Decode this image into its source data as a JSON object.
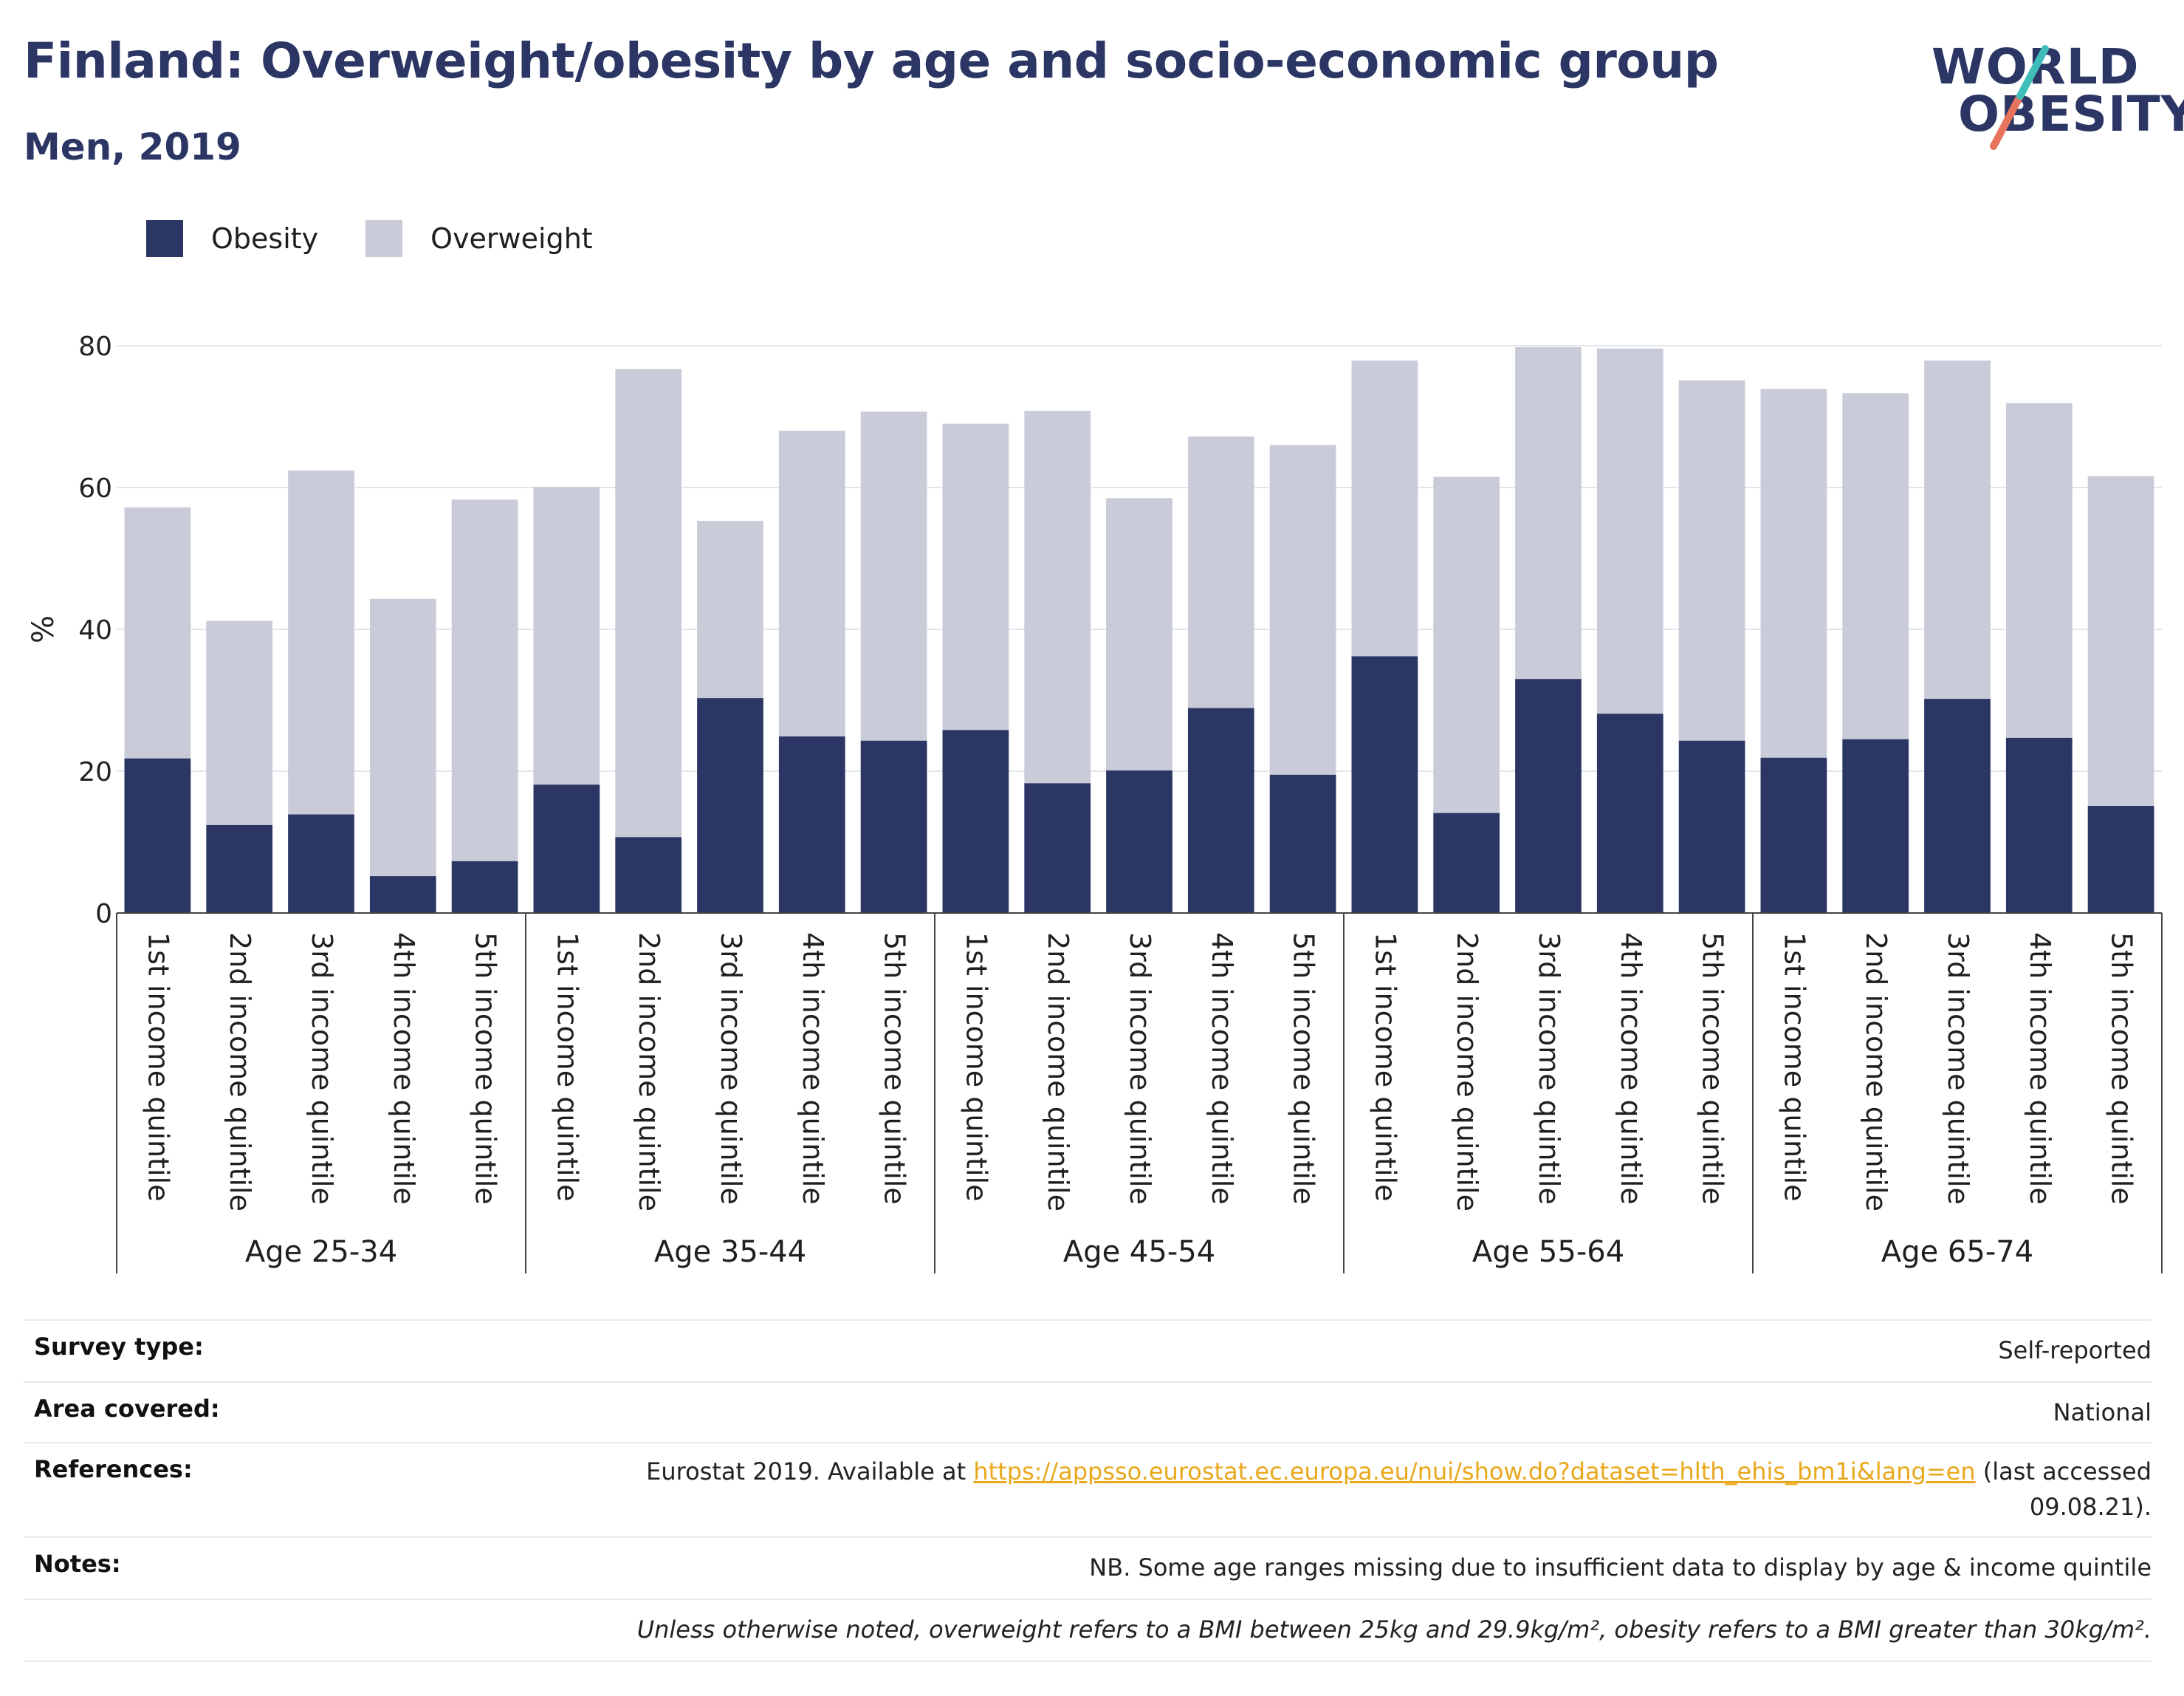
{
  "header": {
    "title": "Finland: Overweight/obesity by age and socio-economic group",
    "subtitle": "Men, 2019"
  },
  "logo": {
    "line1": "WORLD",
    "line2": "OBESITY"
  },
  "legend": [
    {
      "label": "Obesity",
      "color": "#2b3665"
    },
    {
      "label": "Overweight",
      "color": "#c9cbd8"
    }
  ],
  "chart_data": {
    "type": "bar",
    "stacked": true,
    "ylabel": "%",
    "ylim": [
      0,
      85
    ],
    "yticks": [
      0,
      20,
      40,
      60,
      80
    ],
    "grid": true,
    "legend_position": "top-left",
    "groups": [
      {
        "label": "Age 25-34",
        "categories": [
          "1st income quintile",
          "2nd income quintile",
          "3rd income quintile",
          "4th income quintile",
          "5th income quintile"
        ]
      },
      {
        "label": "Age 35-44",
        "categories": [
          "1st income quintile",
          "2nd income quintile",
          "3rd income quintile",
          "4th income quintile",
          "5th income quintile"
        ]
      },
      {
        "label": "Age 45-54",
        "categories": [
          "1st income quintile",
          "2nd income quintile",
          "3rd income quintile",
          "4th income quintile",
          "5th income quintile"
        ]
      },
      {
        "label": "Age 55-64",
        "categories": [
          "1st income quintile",
          "2nd income quintile",
          "3rd income quintile",
          "4th income quintile",
          "5th income quintile"
        ]
      },
      {
        "label": "Age 65-74",
        "categories": [
          "1st income quintile",
          "2nd income quintile",
          "3rd income quintile",
          "4th income quintile",
          "5th income quintile"
        ]
      }
    ],
    "series": [
      {
        "name": "Obesity",
        "color": "#2b3665",
        "values": [
          21.8,
          12.4,
          13.9,
          5.2,
          7.3,
          18.1,
          10.7,
          30.3,
          24.9,
          24.3,
          25.8,
          18.3,
          20.1,
          28.9,
          19.5,
          36.2,
          14.1,
          33.0,
          28.1,
          24.3,
          21.9,
          24.5,
          30.2,
          24.7,
          15.1
        ]
      },
      {
        "name": "Overweight",
        "color": "#c9cbd8",
        "values": [
          35.4,
          28.8,
          48.5,
          39.1,
          51.0,
          42.0,
          66.0,
          25.0,
          43.1,
          46.4,
          43.2,
          52.5,
          38.4,
          38.3,
          46.5,
          41.7,
          47.4,
          46.8,
          51.5,
          50.8,
          52.0,
          48.8,
          47.7,
          47.2,
          46.5
        ]
      }
    ]
  },
  "info": {
    "survey_type_label": "Survey type:",
    "survey_type_value": "Self-reported",
    "area_label": "Area covered:",
    "area_value": "National",
    "references_label": "References:",
    "references_prefix": "Eurostat 2019. Available at ",
    "references_link": "https://appsso.eurostat.ec.europa.eu/nui/show.do?dataset=hlth_ehis_bm1i&lang=en",
    "references_suffix_1": " (last accessed",
    "references_suffix_2": "09.08.21).",
    "notes_label": "Notes:",
    "notes_value": "NB. Some age ranges missing due to insufficient data to display by age & income quintile",
    "footnote": "Unless otherwise noted, overweight refers to a BMI between 25kg and 29.9kg/m², obesity refers to a BMI greater than 30kg/m²."
  }
}
